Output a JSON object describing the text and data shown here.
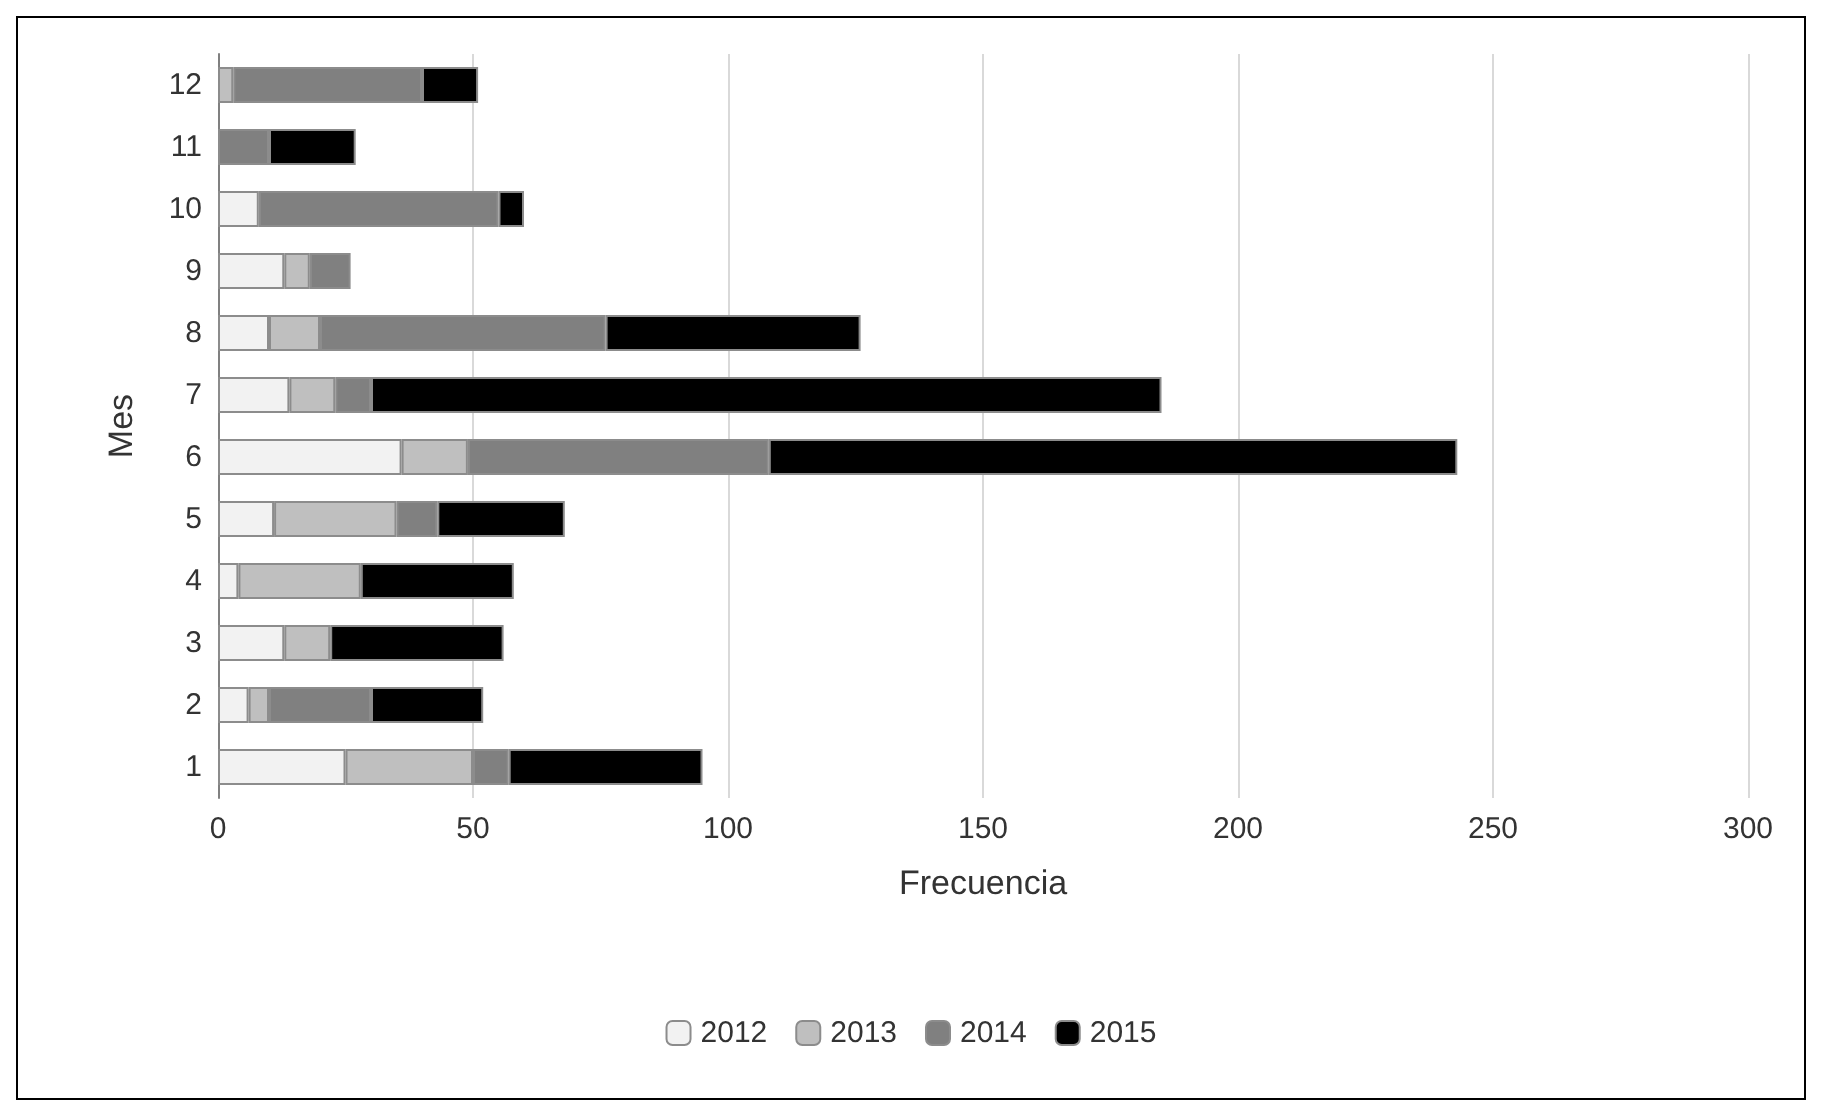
{
  "chart_data": {
    "type": "bar",
    "orientation": "horizontal",
    "stacked": true,
    "xlabel": "Frecuencia",
    "ylabel": "Mes",
    "categories": [
      "12",
      "11",
      "10",
      "9",
      "8",
      "7",
      "6",
      "5",
      "4",
      "3",
      "2",
      "1"
    ],
    "series": [
      {
        "name": "2012",
        "color": "#f2f2f2",
        "values": [
          0,
          0,
          8,
          13,
          10,
          14,
          36,
          11,
          4,
          13,
          6,
          25
        ]
      },
      {
        "name": "2013",
        "color": "#bfbfbf",
        "values": [
          3,
          0,
          0,
          5,
          10,
          9,
          13,
          24,
          24,
          9,
          4,
          25
        ]
      },
      {
        "name": "2014",
        "color": "#808080",
        "values": [
          37,
          10,
          47,
          8,
          56,
          7,
          59,
          8,
          0,
          0,
          20,
          7
        ]
      },
      {
        "name": "2015",
        "color": "#000000",
        "values": [
          11,
          17,
          5,
          0,
          50,
          155,
          135,
          25,
          30,
          34,
          22,
          38
        ]
      }
    ],
    "xlim": [
      0,
      300
    ],
    "xticks": [
      0,
      50,
      100,
      150,
      200,
      250,
      300
    ],
    "grid": "x",
    "legend": "bottom"
  }
}
